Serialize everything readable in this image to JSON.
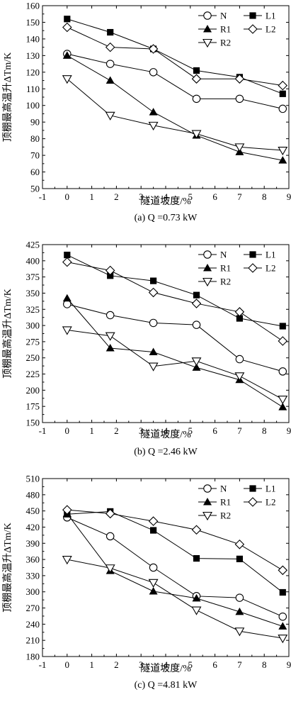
{
  "chart_data": [
    {
      "type": "line",
      "caption": "(a) Q =0.73 kW",
      "xlabel": "隧道坡度/%",
      "ylabel": "顶棚最高温升ΔTm/K",
      "xlim": [
        -1,
        9
      ],
      "ylim": [
        50,
        160
      ],
      "xticks": [
        -1,
        0,
        1,
        2,
        3,
        4,
        5,
        6,
        7,
        8,
        9
      ],
      "yticks": [
        50,
        60,
        70,
        80,
        90,
        100,
        110,
        120,
        130,
        140,
        150,
        160
      ],
      "legend_position": "top-right",
      "x": [
        0,
        1.75,
        3.5,
        5.25,
        7,
        8.75
      ],
      "series": [
        {
          "name": "N",
          "marker": "circle-open",
          "values": [
            131,
            125,
            120,
            104,
            104,
            98
          ]
        },
        {
          "name": "L1",
          "marker": "square-filled",
          "values": [
            152,
            144,
            134,
            121,
            117,
            107
          ]
        },
        {
          "name": "R1",
          "marker": "triangle-up-filled",
          "values": [
            130,
            115,
            96,
            82,
            72,
            67
          ]
        },
        {
          "name": "L2",
          "marker": "diamond-open",
          "values": [
            147,
            135,
            134,
            116,
            116,
            112
          ]
        },
        {
          "name": "R2",
          "marker": "triangle-down-open",
          "values": [
            116,
            94,
            88,
            83,
            75,
            73
          ]
        }
      ]
    },
    {
      "type": "line",
      "caption": "(b) Q =2.46 kW",
      "xlabel": "隧道坡度/%",
      "ylabel": "顶棚最高温升ΔTm/K",
      "xlim": [
        -1,
        9
      ],
      "ylim": [
        150,
        425
      ],
      "xticks": [
        -1,
        0,
        1,
        2,
        3,
        4,
        5,
        6,
        7,
        8,
        9
      ],
      "yticks": [
        150,
        175,
        200,
        225,
        250,
        275,
        300,
        325,
        350,
        375,
        400,
        425
      ],
      "legend_position": "top-right",
      "x": [
        0,
        1.75,
        3.5,
        5.25,
        7,
        8.75
      ],
      "series": [
        {
          "name": "N",
          "marker": "circle-open",
          "values": [
            333,
            316,
            304,
            301,
            248,
            229
          ]
        },
        {
          "name": "L1",
          "marker": "square-filled",
          "values": [
            409,
            377,
            369,
            347,
            311,
            299
          ]
        },
        {
          "name": "R1",
          "marker": "triangle-up-filled",
          "values": [
            342,
            265,
            259,
            235,
            216,
            174
          ]
        },
        {
          "name": "L2",
          "marker": "diamond-open",
          "values": [
            398,
            385,
            351,
            334,
            321,
            276
          ]
        },
        {
          "name": "R2",
          "marker": "triangle-down-open",
          "values": [
            293,
            284,
            237,
            245,
            222,
            186
          ]
        }
      ]
    },
    {
      "type": "line",
      "caption": "(c) Q =4.81 kW",
      "xlabel": "隧道坡度/%",
      "ylabel": "顶棚最高温升ΔTm/K",
      "xlim": [
        -1,
        9
      ],
      "ylim": [
        180,
        510
      ],
      "xticks": [
        -1,
        0,
        1,
        2,
        3,
        4,
        5,
        6,
        7,
        8,
        9
      ],
      "yticks": [
        180,
        210,
        240,
        270,
        300,
        330,
        360,
        390,
        420,
        450,
        480,
        510
      ],
      "legend_position": "top-right",
      "x": [
        0,
        1.75,
        3.5,
        5.25,
        7,
        8.75
      ],
      "series": [
        {
          "name": "N",
          "marker": "circle-open",
          "values": [
            438,
            403,
            345,
            292,
            289,
            254
          ]
        },
        {
          "name": "L1",
          "marker": "square-filled",
          "values": [
            444,
            449,
            414,
            362,
            361,
            299
          ]
        },
        {
          "name": "R1",
          "marker": "triangle-up-filled",
          "values": [
            445,
            339,
            301,
            288,
            263,
            236
          ]
        },
        {
          "name": "L2",
          "marker": "diamond-open",
          "values": [
            452,
            445,
            431,
            415,
            388,
            340
          ]
        },
        {
          "name": "R2",
          "marker": "triangle-down-open",
          "values": [
            360,
            344,
            317,
            266,
            227,
            214
          ]
        }
      ]
    }
  ]
}
